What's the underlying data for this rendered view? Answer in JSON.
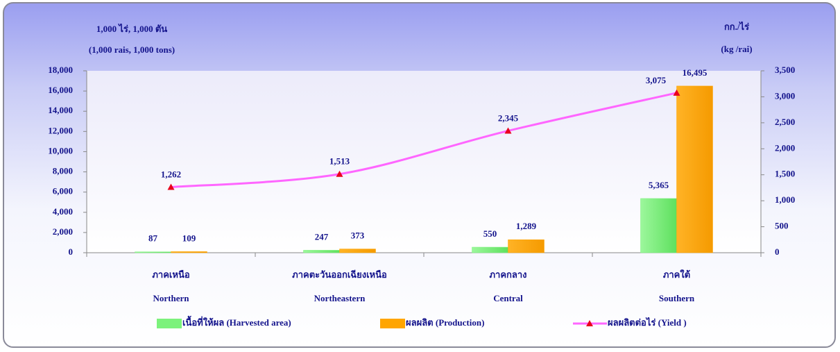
{
  "chart_data": {
    "type": "bar",
    "y_axis_label": [
      "1,000 ไร่, 1,000  ตัน",
      "(1,000 rais,  1,000 tons)"
    ],
    "y2_axis_label": [
      "กก./ไร่",
      "(kg /rai)"
    ],
    "categories": [
      [
        "ภาคเหนือ",
        "Northern"
      ],
      [
        "ภาคตะวันออกเฉียงเหนือ",
        "Northeastern"
      ],
      [
        "ภาคกลาง",
        "Central"
      ],
      [
        "ภาคใต้",
        "Southern"
      ]
    ],
    "series": [
      {
        "name": "เนื้อที่ให้ผล (Harvested area)",
        "type": "bar",
        "color": "#7cf27c",
        "values": [
          87,
          247,
          550,
          5365
        ],
        "value_labels": [
          "87",
          "247",
          "550",
          "5,365"
        ]
      },
      {
        "name": "ผลผลิต (Production)",
        "type": "bar",
        "color": "#ffa500",
        "values": [
          109,
          373,
          1289,
          16495
        ],
        "value_labels": [
          "109",
          "373",
          "1,289",
          "16,495"
        ]
      },
      {
        "name": "ผลผลิตต่อไร่ (Yield )",
        "type": "line",
        "axis": "y2",
        "color": "#ff66ff",
        "marker_color": "#e8001c",
        "values": [
          1262,
          1513,
          2345,
          3075
        ],
        "value_labels": [
          "1,262",
          "1,513",
          "2,345",
          "3,075"
        ]
      }
    ],
    "ylim": [
      0,
      18000
    ],
    "yticks": [
      0,
      {
        "value": 2000,
        "label": "2,000"
      },
      {
        "value": 4000,
        "label": "4,000"
      },
      {
        "value": 6000,
        "label": "6,000"
      },
      {
        "value": 8000,
        "label": "8,000"
      },
      {
        "value": 10000,
        "label": "10,000"
      },
      {
        "value": 12000,
        "label": "12,000"
      },
      {
        "value": 14000,
        "label": "14,000"
      },
      {
        "value": 16000,
        "label": "16,000"
      },
      {
        "value": 18000,
        "label": "18,000"
      }
    ],
    "y2lim": [
      0,
      3500
    ],
    "y2ticks": [
      0,
      500,
      {
        "value": 1000,
        "label": "1,000"
      },
      {
        "value": 1500,
        "label": "1,500"
      },
      {
        "value": 2000,
        "label": "2,000"
      },
      {
        "value": 2500,
        "label": "2,500"
      },
      {
        "value": 3000,
        "label": "3,000"
      },
      {
        "value": 3500,
        "label": "3,500"
      }
    ],
    "legend": "bottom"
  }
}
